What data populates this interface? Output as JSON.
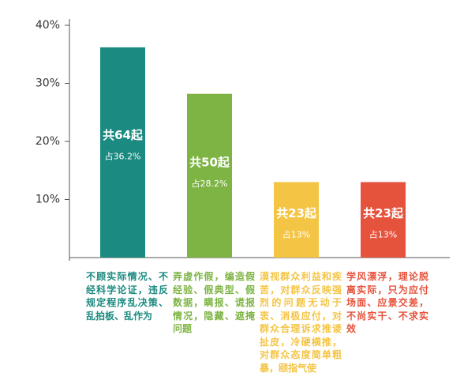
{
  "chart_data": {
    "type": "bar",
    "categories": [
      "不顾实际情况、不经科学论证，违反规定程序乱决策、乱拍板、乱作为",
      "弄虚作假，编造假经验、假典型、假数据，瞒报、谎报情况，隐藏、遮掩问题",
      "漠视群众利益和疾苦，对群众反映强烈的问题无动于衷、消极应付，对群众合理诉求推诿扯皮，冷硬横推，对群众态度简单粗暴，颐指气使",
      "学风漂浮，理论脱离实际，只为应付场面、应景交差，不尚实干、不求实效"
    ],
    "values": [
      36.2,
      28.2,
      13,
      13
    ],
    "value_labels": [
      "占36.2%",
      "占28.2%",
      "占13%",
      "占13%"
    ],
    "count_labels": [
      "共64起",
      "共50起",
      "共23起",
      "共23起"
    ],
    "colors": [
      "#1b8a80",
      "#7db443",
      "#f4c444",
      "#e6533d"
    ],
    "ylim": [
      0,
      40
    ],
    "yticks": [
      {
        "value": 10,
        "label": "10%"
      },
      {
        "value": 20,
        "label": "20%"
      },
      {
        "value": 30,
        "label": "30%"
      },
      {
        "value": 40,
        "label": "40%"
      }
    ]
  }
}
